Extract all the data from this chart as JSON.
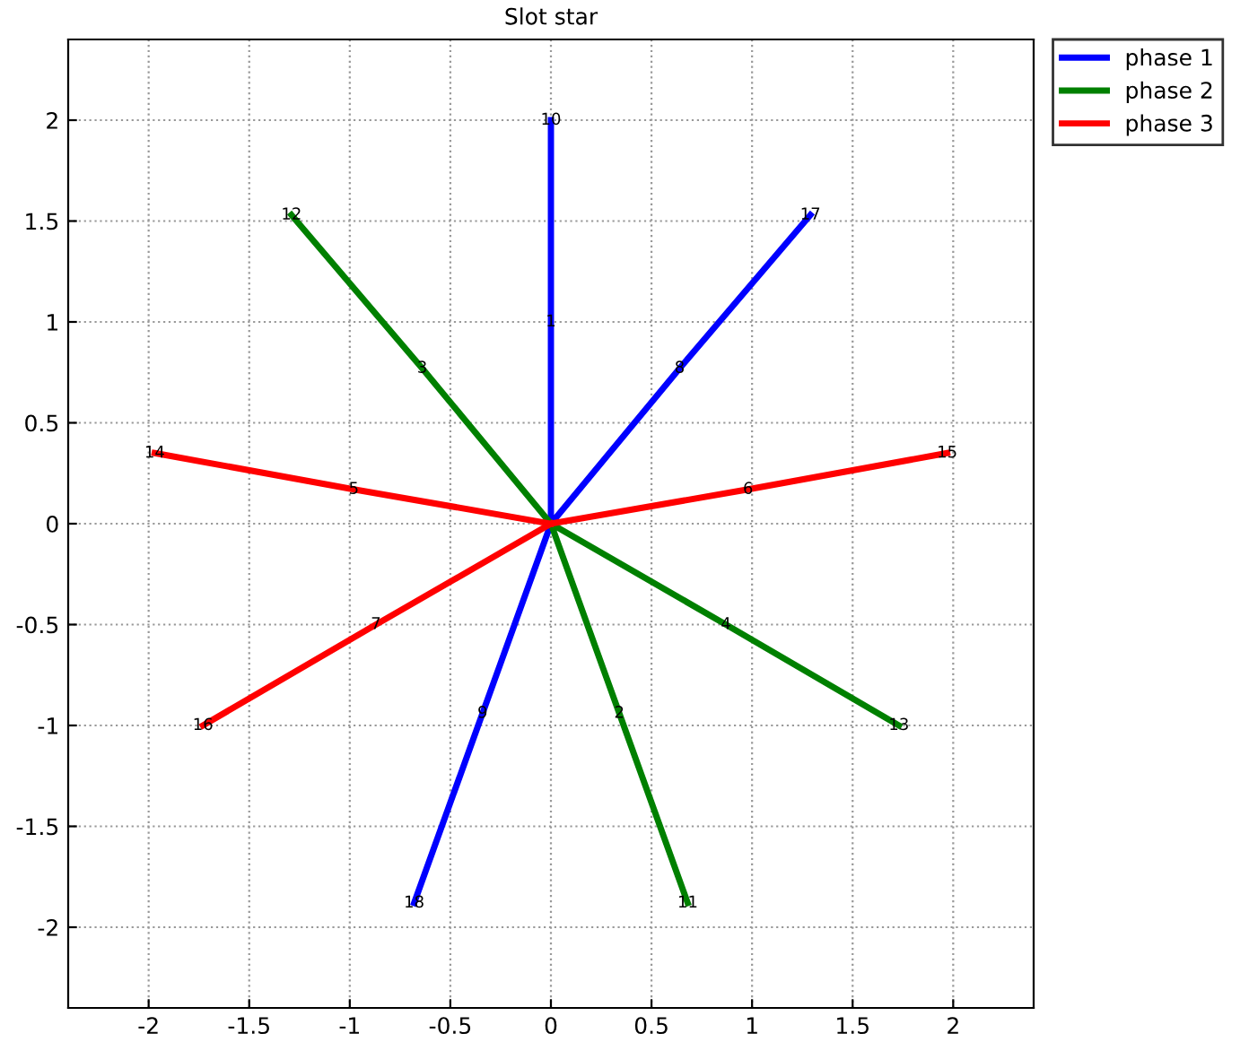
{
  "chart_data": {
    "type": "line",
    "title": "Slot star",
    "series": [
      {
        "name": "phase 1",
        "color": "#0000ff",
        "x": [
          0,
          0,
          0,
          null,
          0,
          0.64,
          1.29,
          null,
          0,
          -0.34,
          -0.68
        ],
        "values": [
          0,
          1,
          2,
          null,
          0,
          0.77,
          1.53,
          null,
          0,
          -0.94,
          -1.88
        ]
      },
      {
        "name": "phase 2",
        "color": "#008000",
        "x": [
          0,
          -0.64,
          -1.29,
          null,
          0,
          0.87,
          1.73,
          null,
          0,
          0.34,
          0.68
        ],
        "values": [
          0,
          0.77,
          1.53,
          null,
          0,
          -0.5,
          -1,
          null,
          0,
          -0.94,
          -1.88
        ]
      },
      {
        "name": "phase 3",
        "color": "#ff0000",
        "x": [
          0,
          -0.98,
          -1.97,
          null,
          0,
          0.98,
          1.97,
          null,
          0,
          -0.87,
          -1.73
        ],
        "values": [
          0,
          0.17,
          0.35,
          null,
          0,
          0.17,
          0.35,
          null,
          0,
          -0.5,
          -1
        ]
      }
    ],
    "annotations": [
      {
        "text": "1",
        "x": 0,
        "y": 1
      },
      {
        "text": "2",
        "x": 0.34,
        "y": -0.94
      },
      {
        "text": "3",
        "x": -0.64,
        "y": 0.77
      },
      {
        "text": "4",
        "x": 0.87,
        "y": -0.5
      },
      {
        "text": "5",
        "x": -0.98,
        "y": 0.17
      },
      {
        "text": "6",
        "x": 0.98,
        "y": 0.17
      },
      {
        "text": "7",
        "x": -0.87,
        "y": -0.5
      },
      {
        "text": "8",
        "x": 0.64,
        "y": 0.77
      },
      {
        "text": "9",
        "x": -0.34,
        "y": -0.94
      },
      {
        "text": "10",
        "x": 0,
        "y": 2
      },
      {
        "text": "11",
        "x": 0.68,
        "y": -1.88
      },
      {
        "text": "12",
        "x": -1.29,
        "y": 1.53
      },
      {
        "text": "13",
        "x": 1.73,
        "y": -1
      },
      {
        "text": "14",
        "x": -1.97,
        "y": 0.35
      },
      {
        "text": "15",
        "x": 1.97,
        "y": 0.35
      },
      {
        "text": "16",
        "x": -1.73,
        "y": -1
      },
      {
        "text": "17",
        "x": 1.29,
        "y": 1.53
      },
      {
        "text": "18",
        "x": -0.68,
        "y": -1.88
      }
    ],
    "xlim": [
      -2.4,
      2.4
    ],
    "ylim": [
      -2.4,
      2.4
    ],
    "xticks": [
      -2,
      -1.5,
      -1,
      -0.5,
      0,
      0.5,
      1,
      1.5,
      2
    ],
    "yticks": [
      -2,
      -1.5,
      -1,
      -0.5,
      0,
      0.5,
      1,
      1.5,
      2
    ],
    "grid": true,
    "legend": "top right",
    "line_style": "solid"
  }
}
